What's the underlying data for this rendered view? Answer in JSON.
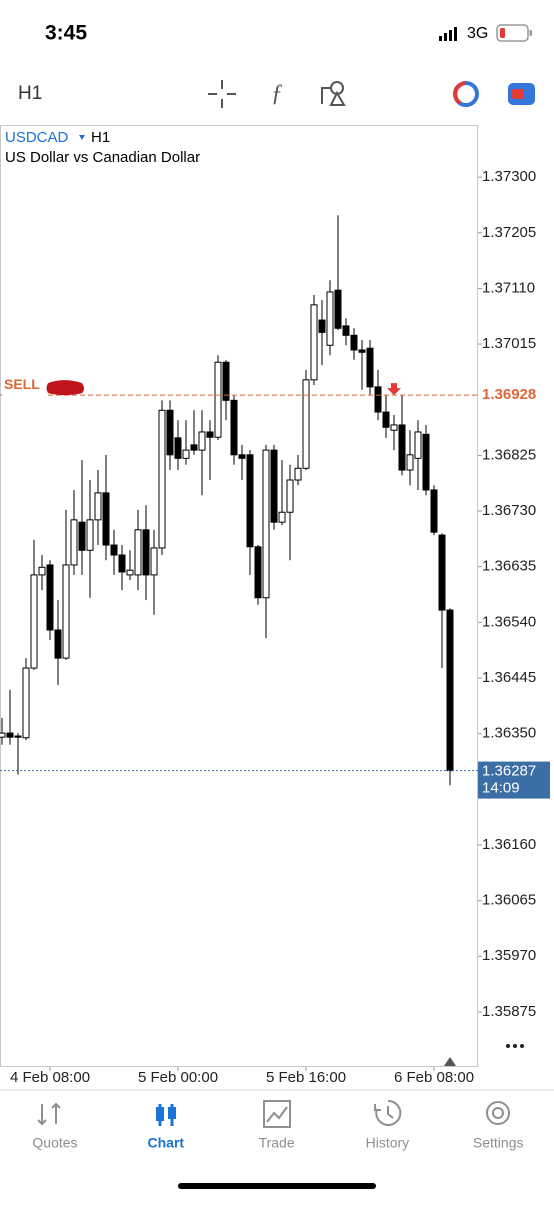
{
  "status_bar": {
    "time": "3:45",
    "network": "3G"
  },
  "toolbar": {
    "timeframe": "H1"
  },
  "chart_data": {
    "type": "candlestick",
    "symbol": "USDCAD",
    "timeframe": "H1",
    "description": "US Dollar vs Canadian Dollar",
    "categories": [
      null,
      null,
      null,
      null,
      null,
      null,
      "4 Feb 08:00",
      null,
      null,
      null,
      null,
      null,
      null,
      null,
      null,
      null,
      null,
      null,
      null,
      null,
      null,
      null,
      "5 Feb 00:00",
      null,
      null,
      null,
      null,
      null,
      null,
      null,
      null,
      null,
      null,
      null,
      null,
      null,
      null,
      null,
      "5 Feb 16:00",
      null,
      null,
      null,
      null,
      null,
      null,
      null,
      null,
      null,
      null,
      null,
      null,
      null,
      null,
      null,
      "6 Feb 08:00",
      null,
      null
    ],
    "open": [
      1.36344,
      1.36351,
      1.36346,
      1.36343,
      1.36462,
      1.36621,
      1.36638,
      1.36527,
      1.36479,
      1.36638,
      1.36711,
      1.36663,
      1.36715,
      1.36761,
      1.36672,
      1.36655,
      1.36621,
      1.36621,
      1.36698,
      1.36621,
      1.36667,
      1.36902,
      1.36855,
      1.3682,
      1.36843,
      1.36834,
      1.36865,
      1.36856,
      1.36984,
      1.36919,
      1.36826,
      1.36826,
      1.36669,
      1.36582,
      1.36834,
      1.36711,
      1.36728,
      1.36783,
      1.36803,
      1.36954,
      1.37056,
      1.37013,
      1.37107,
      1.37046,
      1.3703,
      1.37005,
      1.37008,
      1.36942,
      1.36899,
      1.36868,
      1.36877,
      1.368,
      1.3682,
      1.36861,
      1.36766,
      1.36689,
      1.36561
    ],
    "high": [
      1.36377,
      1.36425,
      1.36351,
      1.36479,
      1.36681,
      1.36655,
      1.36646,
      1.36578,
      1.36732,
      1.36766,
      1.36817,
      1.36783,
      1.368,
      1.36826,
      1.36698,
      1.36672,
      1.36663,
      1.36732,
      1.3674,
      1.36698,
      1.36919,
      1.36919,
      1.36885,
      1.36885,
      1.36902,
      1.36902,
      1.36885,
      1.36996,
      1.36988,
      1.36928,
      1.36843,
      1.36834,
      1.36672,
      1.36843,
      1.36843,
      1.36817,
      1.36809,
      1.36826,
      1.36971,
      1.37099,
      1.3709,
      1.37124,
      1.37235,
      1.37059,
      1.37042,
      1.37022,
      1.37022,
      1.36971,
      1.36928,
      1.36894,
      1.36928,
      1.36868,
      1.36885,
      1.36877,
      1.36774,
      1.36692,
      1.36564
    ],
    "low": [
      1.36331,
      1.36331,
      1.3628,
      1.36339,
      1.36459,
      1.36595,
      1.3651,
      1.36433,
      1.36476,
      1.36621,
      1.36621,
      1.36582,
      1.36672,
      1.36646,
      1.36621,
      1.36595,
      1.36612,
      1.36595,
      1.36578,
      1.36553,
      1.36655,
      1.368,
      1.368,
      1.36809,
      1.36826,
      1.36757,
      1.36783,
      1.36851,
      1.36885,
      1.36809,
      1.36783,
      1.36621,
      1.3657,
      1.36513,
      1.36698,
      1.36706,
      1.36646,
      1.36774,
      1.368,
      1.36945,
      1.36979,
      1.36996,
      1.37039,
      1.37013,
      1.36988,
      1.36937,
      1.36928,
      1.36885,
      1.36855,
      1.36834,
      1.36791,
      1.36774,
      1.36766,
      1.36757,
      1.36689,
      1.36462,
      1.36262
    ],
    "close": [
      1.36351,
      1.36344,
      1.36344,
      1.36462,
      1.36621,
      1.36634,
      1.36527,
      1.36479,
      1.36638,
      1.36715,
      1.36663,
      1.36715,
      1.36761,
      1.36672,
      1.36655,
      1.36626,
      1.36629,
      1.36698,
      1.36621,
      1.36667,
      1.36902,
      1.36826,
      1.3682,
      1.36834,
      1.36834,
      1.36865,
      1.36856,
      1.36984,
      1.36919,
      1.36826,
      1.3682,
      1.36669,
      1.36582,
      1.36834,
      1.36711,
      1.36728,
      1.36783,
      1.36803,
      1.36954,
      1.37082,
      1.37035,
      1.37104,
      1.37042,
      1.3703,
      1.37005,
      1.37001,
      1.36942,
      1.36899,
      1.36873,
      1.36877,
      1.368,
      1.36826,
      1.36865,
      1.36766,
      1.36694,
      1.36561,
      1.36287
    ],
    "up_color": "#ffffff",
    "down_color": "#000000",
    "ylim": [
      1.35781,
      1.37389
    ],
    "yticks": [
      {
        "value": 1.373,
        "label": "1.37300"
      },
      1.37205,
      {
        "value": 1.3711,
        "label": "1.37110"
      },
      1.37015,
      1.36825,
      {
        "value": 1.3673,
        "label": "1.36730"
      },
      1.36635,
      {
        "value": 1.3654,
        "label": "1.36540"
      },
      1.36445,
      {
        "value": 1.3635,
        "label": "1.36350"
      },
      {
        "value": 1.3616,
        "label": "1.36160"
      },
      1.36065,
      {
        "value": 1.3597,
        "label": "1.35970"
      },
      1.35875
    ],
    "sell_level": {
      "label": "SELL",
      "value": 1.36928,
      "color": "#e0663a"
    },
    "current_price": {
      "value": 1.36287,
      "countdown": "14:09",
      "color": "#3b6ea5"
    }
  },
  "tab_bar": {
    "tabs": [
      "Quotes",
      "Chart",
      "Trade",
      "History",
      "Settings"
    ],
    "active": 1
  }
}
